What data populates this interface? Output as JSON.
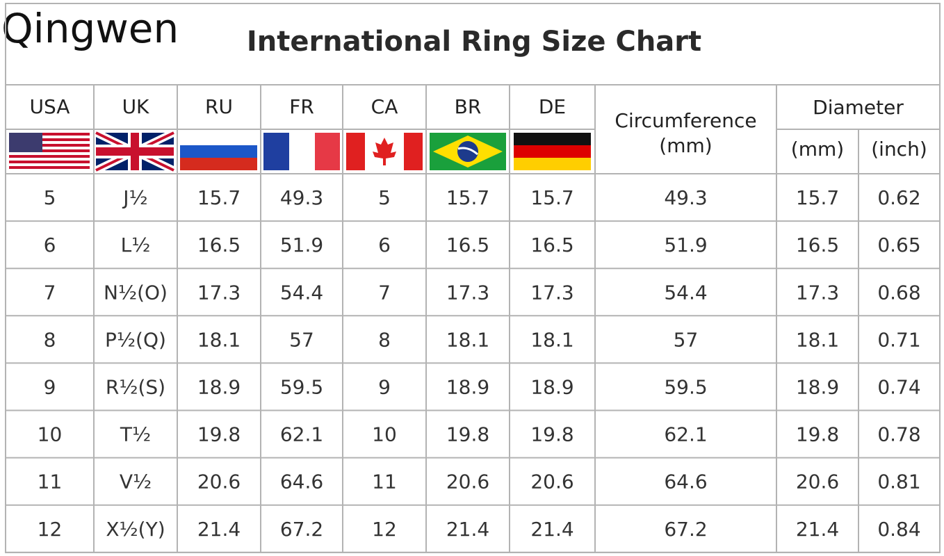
{
  "brand": "Qingwen",
  "title": "International Ring Size Chart",
  "table": {
    "columns": [
      "USA",
      "UK",
      "RU",
      "FR",
      "CA",
      "BR",
      "DE"
    ],
    "circumference": {
      "label": "Circumference",
      "unit": "(mm)"
    },
    "diameter": {
      "label": "Diameter",
      "units": [
        "(mm)",
        "(inch)"
      ]
    },
    "rows": [
      [
        "5",
        "J½",
        "15.7",
        "49.3",
        "5",
        "15.7",
        "15.7",
        "49.3",
        "15.7",
        "0.62"
      ],
      [
        "6",
        "L½",
        "16.5",
        "51.9",
        "6",
        "16.5",
        "16.5",
        "51.9",
        "16.5",
        "0.65"
      ],
      [
        "7",
        "N½(O)",
        "17.3",
        "54.4",
        "7",
        "17.3",
        "17.3",
        "54.4",
        "17.3",
        "0.68"
      ],
      [
        "8",
        "P½(Q)",
        "18.1",
        "57",
        "8",
        "18.1",
        "18.1",
        "57",
        "18.1",
        "0.71"
      ],
      [
        "9",
        "R½(S)",
        "18.9",
        "59.5",
        "9",
        "18.9",
        "18.9",
        "59.5",
        "18.9",
        "0.74"
      ],
      [
        "10",
        "T½",
        "19.8",
        "62.1",
        "10",
        "19.8",
        "19.8",
        "62.1",
        "19.8",
        "0.78"
      ],
      [
        "11",
        "V½",
        "20.6",
        "64.6",
        "11",
        "20.6",
        "20.6",
        "64.6",
        "20.6",
        "0.81"
      ],
      [
        "12",
        "X½(Y)",
        "21.4",
        "67.2",
        "12",
        "21.4",
        "21.4",
        "67.2",
        "21.4",
        "0.84"
      ]
    ]
  }
}
